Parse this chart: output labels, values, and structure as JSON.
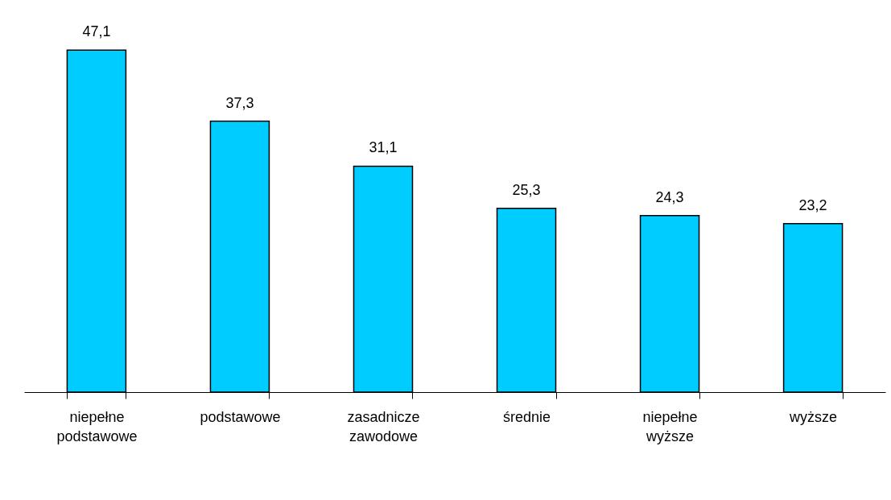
{
  "chart_data": {
    "type": "bar",
    "categories": [
      "niepełne podstawowe",
      "podstawowe",
      "zasadnicze zawodowe",
      "średnie",
      "niepełne wyższe",
      "wyższe"
    ],
    "values": [
      47.1,
      37.3,
      31.1,
      25.3,
      24.3,
      23.2
    ],
    "value_labels": [
      "47,1",
      "37,3",
      "31,1",
      "25,3",
      "24,3",
      "23,2"
    ],
    "color": "#00ccff",
    "grid": false
  }
}
